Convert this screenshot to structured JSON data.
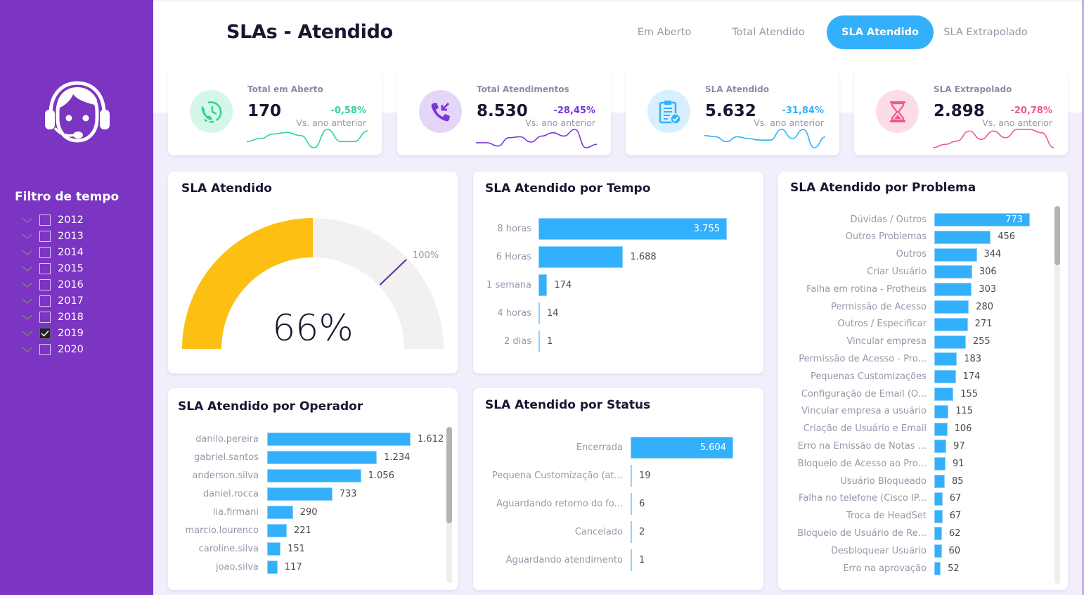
{
  "sidebar": {
    "logo_icon": "headset-agent-icon",
    "filter_title": "Filtro de tempo",
    "years": [
      {
        "label": "2012",
        "checked": false
      },
      {
        "label": "2013",
        "checked": false
      },
      {
        "label": "2014",
        "checked": false
      },
      {
        "label": "2015",
        "checked": false
      },
      {
        "label": "2016",
        "checked": false
      },
      {
        "label": "2017",
        "checked": false
      },
      {
        "label": "2018",
        "checked": false
      },
      {
        "label": "2019",
        "checked": true
      },
      {
        "label": "2020",
        "checked": false
      }
    ]
  },
  "header": {
    "title": "SLAs - Atendido",
    "nav": [
      {
        "label": "Em Aberto",
        "active": false
      },
      {
        "label": "Total Atendido",
        "active": false
      },
      {
        "label": "SLA Atendido",
        "active": true
      },
      {
        "label": "SLA Extrapolado",
        "active": false
      }
    ]
  },
  "kpis": [
    {
      "label": "Total em Aberto",
      "value": "170",
      "delta": "-0,58%",
      "sub": "Vs. ano anterior",
      "icon": "phone-clock-icon",
      "color": "#2fd393",
      "bg": "#d4f7ea",
      "trend": [
        2,
        3,
        4.5,
        5,
        4,
        0,
        6,
        2,
        2,
        5.5
      ]
    },
    {
      "label": "Total Atendimentos",
      "value": "8.530",
      "delta": "-28,45%",
      "sub": "Vs. ano anterior",
      "icon": "incoming-call-icon",
      "color": "#7b35d8",
      "bg": "#e3d6f8",
      "trend": [
        3,
        3,
        2,
        4.5,
        4.8,
        3.2,
        5,
        6,
        5,
        7,
        1.5,
        2.5
      ]
    },
    {
      "label": "SLA Atendido",
      "value": "5.632",
      "delta": "-31,84%",
      "sub": "Vs. ano anterior",
      "icon": "clipboard-check-icon",
      "color": "#33b0fb",
      "bg": "#d7effe",
      "trend": [
        5,
        4.6,
        3,
        4.6,
        4,
        3.5,
        3.5,
        7,
        4,
        7,
        1,
        4.5
      ]
    },
    {
      "label": "SLA Extrapolado",
      "value": "2.898",
      "delta": "-20,78%",
      "sub": "Vs. ano anterior",
      "icon": "hourglass-icon",
      "color": "#f0588a",
      "bg": "#fcdde6",
      "trend": [
        1,
        2,
        3,
        6,
        3.5,
        6,
        4,
        6.5,
        6.5,
        5.5,
        1
      ]
    }
  ],
  "gauge": {
    "title": "SLA Atendido",
    "value_label": "66%",
    "value": 66,
    "target_label": "100%",
    "target": 100,
    "max": 132,
    "fill_color": "#fdbf12",
    "track_color": "#f2f1f0",
    "target_color": "#5a2aa8"
  },
  "chart_data": [
    {
      "type": "bar",
      "title": "SLA Atendido por Tempo",
      "categories": [
        "8 horas",
        "6 Horas",
        "1 semana",
        "4 horas",
        "2 dias"
      ],
      "values": [
        3755,
        1688,
        174,
        14,
        1
      ],
      "value_labels": [
        "3.755",
        "1.688",
        "174",
        "14",
        "1"
      ]
    },
    {
      "type": "bar",
      "title": "SLA Atendido por Operador",
      "categories": [
        "danilo.pereira",
        "gabriel.santos",
        "anderson.silva",
        "daniel.rocca",
        "lia.firmani",
        "marcio.lourenco",
        "caroline.silva",
        "joao.silva"
      ],
      "values": [
        1612,
        1234,
        1056,
        733,
        290,
        221,
        151,
        117
      ],
      "value_labels": [
        "1.612",
        "1.234",
        "1.056",
        "733",
        "290",
        "221",
        "151",
        "117"
      ]
    },
    {
      "type": "bar",
      "title": "SLA Atendido por Status",
      "categories": [
        "Encerrada",
        "Pequena Customização (at...",
        "Aguardando retorno do fo...",
        "Cancelado",
        "Aguardando atendimento"
      ],
      "values": [
        5604,
        19,
        6,
        2,
        1
      ],
      "value_labels": [
        "5.604",
        "19",
        "6",
        "2",
        "1"
      ]
    },
    {
      "type": "bar",
      "title": "SLA Atendido por Problema",
      "categories": [
        "Dúvidas / Outros",
        "Outros Problemas",
        "Outros",
        "Criar Usuário",
        "Falha em rotina - Protheus",
        "Permissão de Acesso",
        "Outros / Especificar",
        "Vincular empresa",
        "Permissão de Acesso - Pro...",
        "Pequenas Customizações",
        "Configuração de Email (O...",
        "Vincular empresa a usuário",
        "Criação de Usuário e Email",
        "Erro na Emissão de Notas ...",
        "Bloqueio de Acesso ao Pro...",
        "Usuário Bloqueado",
        "Falha no telefone (Cisco IP...",
        "Troca de HeadSet",
        "Bloqueio de Usuário de Re...",
        "Desbloquear Usuário",
        "Erro na aprovação"
      ],
      "values": [
        773,
        456,
        344,
        306,
        303,
        280,
        271,
        255,
        183,
        174,
        155,
        115,
        106,
        97,
        91,
        85,
        67,
        67,
        62,
        60,
        52
      ],
      "value_labels": [
        "773",
        "456",
        "344",
        "306",
        "303",
        "280",
        "271",
        "255",
        "183",
        "174",
        "155",
        "115",
        "106",
        "97",
        "91",
        "85",
        "67",
        "67",
        "62",
        "60",
        "52"
      ]
    }
  ],
  "colors": {
    "sidebar": "#7b35c2",
    "accent": "#33b0fb",
    "bar": "#33b0fb",
    "background": "#f3eefb"
  }
}
